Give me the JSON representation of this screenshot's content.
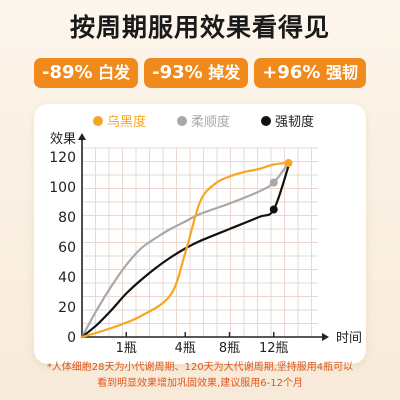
{
  "title": "按周期服用效果看得见",
  "badges": [
    {
      "value": "-89%",
      "label": "白发"
    },
    {
      "value": "-93%",
      "label": "掉发"
    },
    {
      "value": "+96%",
      "label": "强韧"
    }
  ],
  "footnote": {
    "line1": "*人体细胞28天为小代谢周期、120天为大代谢周期,坚持服用4瓶可以",
    "line2": "看到明显效果增加巩固效果,建议服用6-12个月"
  },
  "colors": {
    "orange": "#f5a623",
    "gray": "#a8a8a8",
    "black": "#111111",
    "badge": "#f08a1c",
    "grid": "#ead9d0"
  },
  "chart_data": {
    "type": "line",
    "ylabel": "效果",
    "xlabel": "时间",
    "yticks": [
      0,
      20,
      40,
      60,
      80,
      100,
      120
    ],
    "ylim": [
      0,
      126
    ],
    "xlim": [
      0,
      16
    ],
    "xticks": [
      {
        "value": 3,
        "label": "1瓶"
      },
      {
        "value": 7,
        "label": "4瓶"
      },
      {
        "value": 10,
        "label": "8瓶"
      },
      {
        "value": 13,
        "label": "12瓶"
      }
    ],
    "grid": true,
    "legend_position": "top",
    "series": [
      {
        "name": "乌黑度",
        "color": "#f5a623",
        "marker_index": 11,
        "points": [
          [
            0,
            0
          ],
          [
            2,
            6
          ],
          [
            4,
            14
          ],
          [
            6,
            28
          ],
          [
            7,
            56
          ],
          [
            8,
            90
          ],
          [
            9,
            102
          ],
          [
            10,
            107
          ],
          [
            11,
            110
          ],
          [
            12,
            112
          ],
          [
            13,
            115
          ],
          [
            14,
            116
          ]
        ]
      },
      {
        "name": "柔顺度",
        "color": "#a8a8a8",
        "marker_index": 11,
        "points": [
          [
            0,
            0
          ],
          [
            1,
            18
          ],
          [
            2,
            34
          ],
          [
            3,
            48
          ],
          [
            4,
            59
          ],
          [
            5,
            66
          ],
          [
            6,
            72
          ],
          [
            7,
            77
          ],
          [
            8,
            82
          ],
          [
            10,
            89
          ],
          [
            12,
            97
          ],
          [
            13,
            103
          ],
          [
            14,
            116
          ]
        ]
      },
      {
        "name": "强韧度",
        "color": "#111111",
        "marker_index": 11,
        "points": [
          [
            0,
            0
          ],
          [
            1,
            8
          ],
          [
            2,
            18
          ],
          [
            3,
            29
          ],
          [
            4,
            38
          ],
          [
            5,
            46
          ],
          [
            6,
            53
          ],
          [
            7,
            59
          ],
          [
            8,
            64
          ],
          [
            10,
            72
          ],
          [
            12,
            80
          ],
          [
            13,
            85
          ],
          [
            14,
            114
          ]
        ]
      }
    ]
  }
}
